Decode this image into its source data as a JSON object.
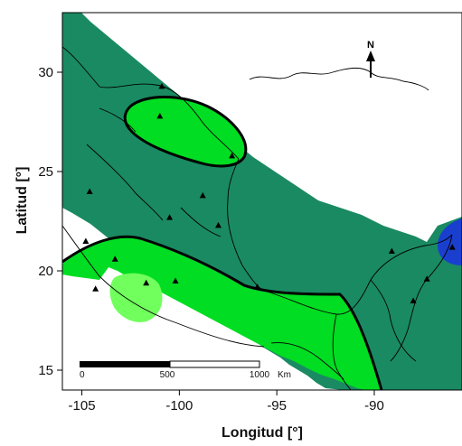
{
  "map": {
    "xlabel": "Longitud [°]",
    "ylabel": "Latitud [°]",
    "lon_range": [
      -106,
      -85.5
    ],
    "lat_range": [
      14,
      33
    ],
    "x_ticks": [
      -105,
      -100,
      -95,
      -90
    ],
    "y_ticks": [
      15,
      20,
      25,
      30
    ],
    "x_tick_labels": [
      "-105",
      "-100",
      "-95",
      "-90"
    ],
    "y_tick_labels": [
      "15",
      "20",
      "25",
      "30"
    ],
    "north_label": "N",
    "scale_bar": {
      "labels": [
        "0",
        "500",
        "1000"
      ],
      "unit": "Km"
    },
    "colors": {
      "base": "#1a8a62",
      "mid": "#00dd22",
      "high": "#70ff5c",
      "sea": "#1a3fcf",
      "contour": "#000000",
      "station": "#000000"
    },
    "stations": [
      {
        "lon": -101.0,
        "lat": 27.8
      },
      {
        "lon": -100.9,
        "lat": 29.3
      },
      {
        "lon": -97.3,
        "lat": 25.8
      },
      {
        "lon": -104.6,
        "lat": 24.0
      },
      {
        "lon": -98.8,
        "lat": 23.8
      },
      {
        "lon": -100.5,
        "lat": 22.7
      },
      {
        "lon": -98.0,
        "lat": 22.3
      },
      {
        "lon": -104.8,
        "lat": 21.5
      },
      {
        "lon": -103.3,
        "lat": 20.6
      },
      {
        "lon": -101.7,
        "lat": 19.4
      },
      {
        "lon": -100.2,
        "lat": 19.5
      },
      {
        "lon": -104.3,
        "lat": 19.1
      },
      {
        "lon": -96.0,
        "lat": 19.2
      },
      {
        "lon": -89.1,
        "lat": 21.0
      },
      {
        "lon": -87.3,
        "lat": 19.6
      },
      {
        "lon": -86.0,
        "lat": 21.2
      },
      {
        "lon": -88.0,
        "lat": 18.5
      }
    ]
  }
}
